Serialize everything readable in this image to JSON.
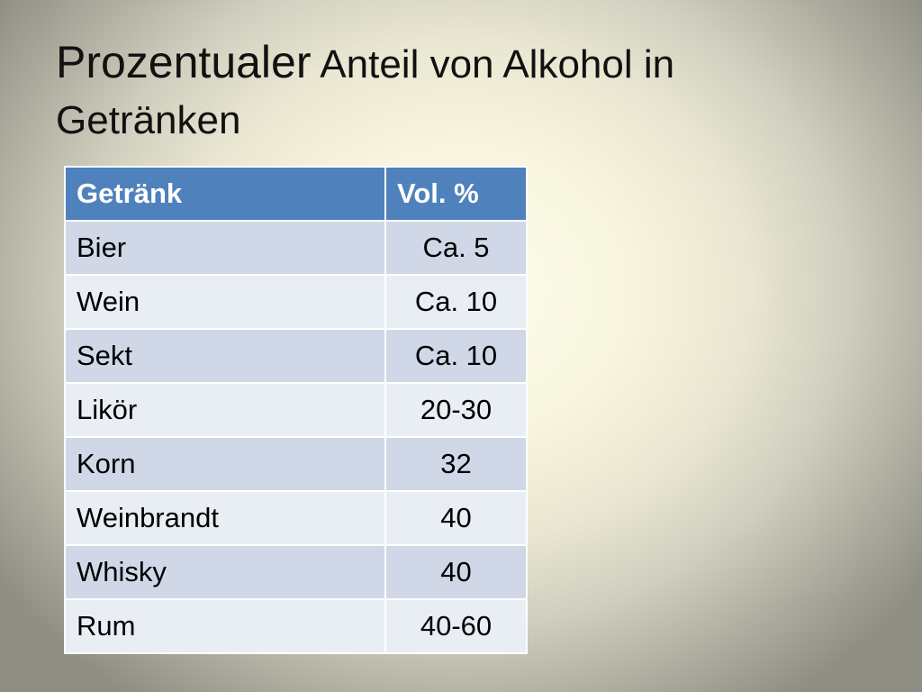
{
  "slide": {
    "title_part1": "Prozentualer",
    "title_part2": " Anteil von Alkohol in Getränken"
  },
  "table": {
    "headers": [
      "Getränk",
      "Vol. %"
    ],
    "rows": [
      [
        "Bier",
        "Ca. 5"
      ],
      [
        "Wein",
        "Ca. 10"
      ],
      [
        "Sekt",
        "Ca. 10"
      ],
      [
        "Likör",
        "20-30"
      ],
      [
        "Korn",
        "32"
      ],
      [
        "Weinbrandt",
        "40"
      ],
      [
        "Whisky",
        "40"
      ],
      [
        "Rum",
        "40-60"
      ]
    ]
  },
  "colors": {
    "header_bg": "#4f81bd",
    "row_band_dark": "#d0d8e8",
    "row_band_light": "#e9edf4"
  }
}
